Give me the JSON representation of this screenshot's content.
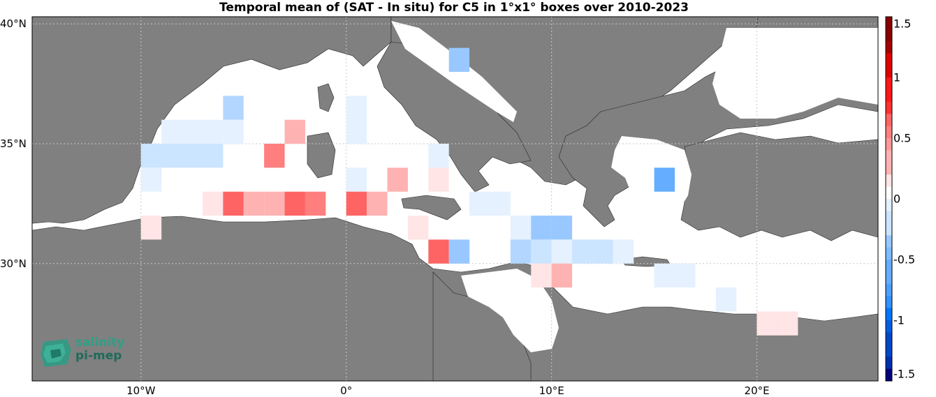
{
  "title": "Temporal mean of (SAT - In situ) for C5 in 1°x1° boxes over 2010-2023",
  "axes": {
    "lon_ticks": [
      "10°W",
      "0°",
      "10°E",
      "20°E"
    ],
    "lat_ticks": [
      "40°N",
      "35°N",
      "30°N"
    ]
  },
  "colorbar": {
    "ticks": [
      "1.5",
      "1",
      "0.5",
      "0",
      "-0.5",
      "-1",
      "-1.5"
    ],
    "range": [
      -1.5,
      1.5
    ],
    "step": 0.1,
    "colormap": "blue-white-red diverging"
  },
  "logo": {
    "line1": "salinity",
    "line2": "pi-mep"
  },
  "colors": {
    "land": "#808080",
    "sea": "#ffffff",
    "grid": "#c8c8c8"
  },
  "chart_data": {
    "type": "heatmap",
    "title": "Temporal mean of (SAT - In situ) for C5 in 1°x1° boxes over 2010-2023",
    "x_unit": "longitude (°E)",
    "y_unit": "latitude (°N)",
    "xlim": [
      -15.3,
      25.9
    ],
    "ylim": [
      25.1,
      40.3
    ],
    "value_range": [
      -1.5,
      1.5
    ],
    "cells": [
      {
        "lon": 5,
        "lat": 38.5,
        "value": -0.4
      },
      {
        "lon": -6,
        "lat": 36.5,
        "value": -0.3
      },
      {
        "lon": 0,
        "lat": 36.5,
        "value": -0.15
      },
      {
        "lon": -9,
        "lat": 35.5,
        "value": -0.15
      },
      {
        "lon": -8,
        "lat": 35.5,
        "value": -0.15
      },
      {
        "lon": -7,
        "lat": 35.5,
        "value": -0.15
      },
      {
        "lon": -6,
        "lat": 35.5,
        "value": -0.15
      },
      {
        "lon": -3,
        "lat": 35.5,
        "value": 0.3
      },
      {
        "lon": 0,
        "lat": 35.5,
        "value": -0.15
      },
      {
        "lon": -10,
        "lat": 34.5,
        "value": -0.25
      },
      {
        "lon": -9,
        "lat": 34.5,
        "value": -0.25
      },
      {
        "lon": -8,
        "lat": 34.5,
        "value": -0.25
      },
      {
        "lon": -7,
        "lat": 34.5,
        "value": -0.25
      },
      {
        "lon": -4,
        "lat": 34.5,
        "value": 0.5
      },
      {
        "lon": 4,
        "lat": 34.5,
        "value": -0.15
      },
      {
        "lon": -10,
        "lat": 33.5,
        "value": -0.15
      },
      {
        "lon": 0,
        "lat": 33.5,
        "value": -0.15
      },
      {
        "lon": 2,
        "lat": 33.5,
        "value": 0.3
      },
      {
        "lon": 4,
        "lat": 33.5,
        "value": 0.1
      },
      {
        "lon": -7,
        "lat": 32.5,
        "value": 0.15
      },
      {
        "lon": -6,
        "lat": 32.5,
        "value": 0.55
      },
      {
        "lon": -5,
        "lat": 32.5,
        "value": 0.3
      },
      {
        "lon": -4,
        "lat": 32.5,
        "value": 0.3
      },
      {
        "lon": -3,
        "lat": 32.5,
        "value": 0.55
      },
      {
        "lon": -2,
        "lat": 32.5,
        "value": 0.45
      },
      {
        "lon": 0,
        "lat": 32.5,
        "value": 0.55
      },
      {
        "lon": 1,
        "lat": 32.5,
        "value": 0.3
      },
      {
        "lon": 6,
        "lat": 32.5,
        "value": -0.15
      },
      {
        "lon": 7,
        "lat": 32.5,
        "value": -0.15
      },
      {
        "lon": -10,
        "lat": 31.5,
        "value": 0.15
      },
      {
        "lon": 3,
        "lat": 31.5,
        "value": 0.15
      },
      {
        "lon": 8,
        "lat": 31.5,
        "value": -0.15
      },
      {
        "lon": 9,
        "lat": 31.5,
        "value": -0.4
      },
      {
        "lon": 10,
        "lat": 31.5,
        "value": -0.4
      },
      {
        "lon": 4,
        "lat": 30.5,
        "value": 0.55
      },
      {
        "lon": 5,
        "lat": 30.5,
        "value": -0.4
      },
      {
        "lon": 8,
        "lat": 30.5,
        "value": -0.35
      },
      {
        "lon": 9,
        "lat": 30.5,
        "value": -0.25
      },
      {
        "lon": 10,
        "lat": 30.5,
        "value": -0.15
      },
      {
        "lon": 11,
        "lat": 30.5,
        "value": -0.25
      },
      {
        "lon": 12,
        "lat": 30.5,
        "value": -0.25
      },
      {
        "lon": 13,
        "lat": 30.5,
        "value": -0.15
      },
      {
        "lon": 15,
        "lat": 33.5,
        "value": -0.6
      },
      {
        "lon": 9,
        "lat": 29.5,
        "value": 0.15
      },
      {
        "lon": 10,
        "lat": 29.5,
        "value": 0.3
      },
      {
        "lon": 15,
        "lat": 29.5,
        "value": -0.15
      },
      {
        "lon": 16,
        "lat": 29.5,
        "value": -0.15
      },
      {
        "lon": 18,
        "lat": 28.5,
        "value": -0.15
      },
      {
        "lon": 20,
        "lat": 27.5,
        "value": 0.15
      },
      {
        "lon": 21,
        "lat": 27.5,
        "value": 0.15
      }
    ]
  }
}
